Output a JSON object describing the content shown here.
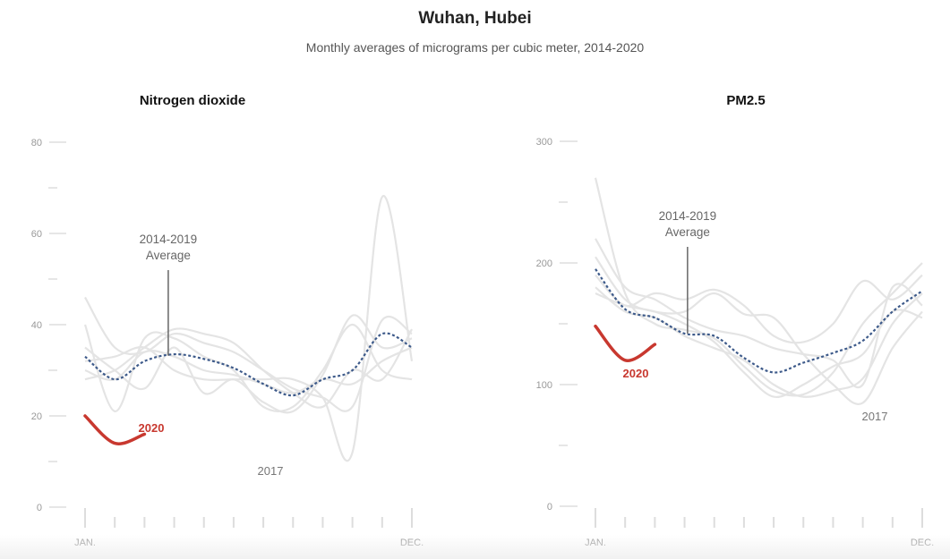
{
  "header": {
    "title": "Wuhan, Hubei",
    "subtitle": "Monthly averages of micrograms per cubic meter, 2014-2020"
  },
  "chart_data": [
    {
      "type": "line",
      "title": "Nitrogen dioxide",
      "ylim": [
        0,
        80
      ],
      "y_ticks": [
        0,
        20,
        40,
        60,
        80
      ],
      "x_months": [
        1,
        2,
        3,
        4,
        5,
        6,
        7,
        8,
        9,
        10,
        11,
        12
      ],
      "x_tick_labels": {
        "first": "JAN.",
        "last": "DEC."
      },
      "annotations": {
        "average_label_line1": "2014-2019",
        "average_label_line2": "Average",
        "highlight_label": "2020",
        "year_label": "2017"
      },
      "colors": {
        "history": "#e4e4e4",
        "average": "#3d5a8a",
        "highlight": "#c8382f"
      },
      "series": [
        {
          "values": [
            46,
            35,
            34,
            38,
            36,
            34,
            30,
            26,
            24,
            22,
            41,
            38
          ]
        },
        {
          "values": [
            28,
            30,
            35,
            39,
            38,
            36,
            30,
            25,
            22,
            30,
            28,
            39
          ]
        },
        {
          "values": [
            40,
            21,
            37,
            37,
            33,
            30,
            22,
            22,
            30,
            40,
            30,
            28
          ]
        },
        {
          "values": [
            35,
            30,
            26,
            35,
            25,
            28,
            23,
            21,
            29,
            42,
            35,
            37
          ]
        },
        {
          "values": [
            32,
            33,
            35,
            30,
            28,
            28,
            28,
            28,
            24,
            12,
            68,
            32
          ]
        },
        {
          "values": [
            30,
            28,
            34,
            33,
            30,
            29,
            27,
            25,
            28,
            27,
            32,
            35
          ]
        },
        {
          "name": "2014-2019 Average",
          "role": "average",
          "values": [
            33,
            28,
            32,
            33.5,
            32.5,
            30.5,
            27,
            24.5,
            28,
            30,
            38,
            35
          ]
        },
        {
          "name": "2020",
          "role": "highlight",
          "values": [
            20,
            14,
            16
          ]
        }
      ]
    },
    {
      "type": "line",
      "title": "PM2.5",
      "ylim": [
        0,
        300
      ],
      "y_ticks": [
        0,
        100,
        200,
        300
      ],
      "x_months": [
        1,
        2,
        3,
        4,
        5,
        6,
        7,
        8,
        9,
        10,
        11,
        12
      ],
      "x_tick_labels": {
        "first": "JAN.",
        "last": "DEC."
      },
      "annotations": {
        "average_label_line1": "2014-2019",
        "average_label_line2": "Average",
        "highlight_label": "2020",
        "year_label": "2017"
      },
      "colors": {
        "history": "#e4e4e4",
        "average": "#3d5a8a",
        "highlight": "#c8382f"
      },
      "series": [
        {
          "values": [
            270,
            175,
            150,
            145,
            138,
            115,
            95,
            92,
            110,
            150,
            175,
            200
          ]
        },
        {
          "values": [
            220,
            180,
            170,
            155,
            145,
            140,
            130,
            125,
            120,
            100,
            180,
            165
          ]
        },
        {
          "values": [
            205,
            170,
            160,
            160,
            175,
            158,
            155,
            125,
            100,
            85,
            130,
            160
          ]
        },
        {
          "values": [
            180,
            160,
            155,
            140,
            130,
            120,
            100,
            90,
            95,
            105,
            150,
            175
          ]
        },
        {
          "values": [
            190,
            165,
            175,
            170,
            178,
            165,
            140,
            135,
            150,
            185,
            170,
            190
          ]
        },
        {
          "values": [
            175,
            165,
            160,
            150,
            135,
            110,
            90,
            100,
            115,
            125,
            160,
            155
          ]
        },
        {
          "name": "2014-2019 Average",
          "role": "average",
          "values": [
            195,
            162,
            155,
            142,
            140,
            122,
            110,
            118,
            126,
            136,
            160,
            177
          ]
        },
        {
          "name": "2020",
          "role": "highlight",
          "values": [
            148,
            120,
            133
          ]
        }
      ]
    }
  ]
}
